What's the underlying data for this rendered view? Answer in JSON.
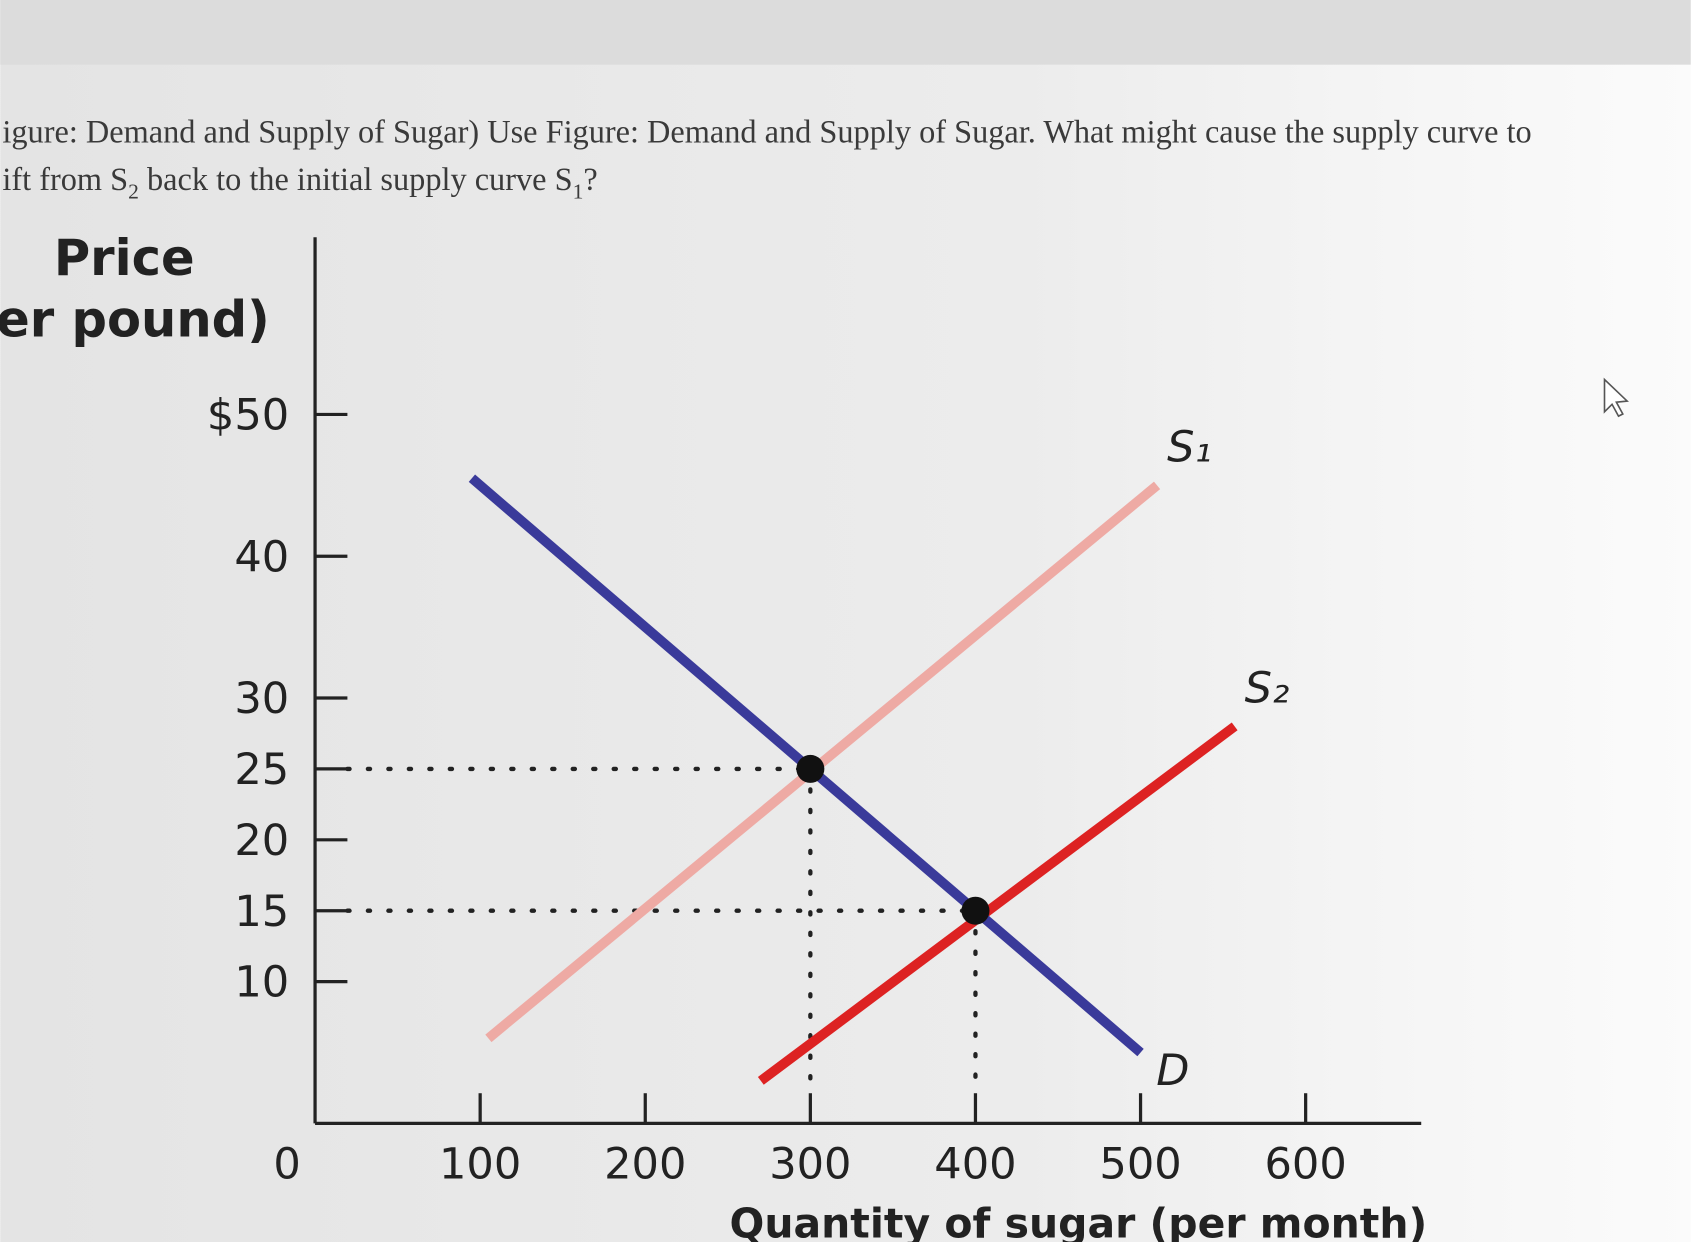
{
  "question": {
    "line1": "igure: Demand and Supply of Sugar) Use Figure: Demand and Supply of Sugar. What might cause the supply curve to",
    "line2_a": "ift from S",
    "line2_sub1": "2",
    "line2_b": " back to the initial supply curve S",
    "line2_sub2": "1",
    "line2_c": "?"
  },
  "chart_data": {
    "type": "line",
    "ylabel": [
      "Price",
      "per pound)"
    ],
    "xlabel": "Quantity of sugar (per month)",
    "xlim": [
      0,
      670
    ],
    "ylim": [
      0,
      62.5
    ],
    "xticks": [
      0,
      100,
      200,
      300,
      400,
      500,
      600
    ],
    "yticks": [
      {
        "value": 50,
        "label": "$50"
      },
      40,
      30,
      25,
      20,
      15,
      10
    ],
    "series": [
      {
        "name": "S₁",
        "color": "#eeaaa4",
        "x": [
          105,
          510
        ],
        "values": [
          6,
          45
        ]
      },
      {
        "name": "S₂",
        "color": "#dd2222",
        "x": [
          270,
          557
        ],
        "values": [
          3,
          28
        ]
      },
      {
        "name": "D",
        "color": "#3a3a9a",
        "x": [
          95,
          500
        ],
        "values": [
          45.5,
          5
        ]
      }
    ],
    "points": {
      "color": "#111111",
      "x": [
        300,
        400
      ],
      "values": [
        25,
        15
      ]
    }
  }
}
